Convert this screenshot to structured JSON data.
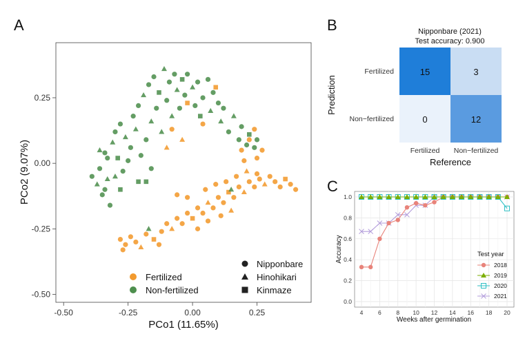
{
  "panels": {
    "a": "A",
    "b": "B",
    "c": "C"
  },
  "colors": {
    "fertilized": "#F29A2E",
    "non_fertilized": "#4E8F4E",
    "cm_high": "#1F7ED9",
    "cm_mid": "#5A9BE0",
    "cm_low": "#C9DDF3",
    "cm_zero": "#EAF2FB",
    "y2018": "#E8837A",
    "y2019": "#7CAE00",
    "y2020": "#2CBFC4",
    "y2021": "#B39DDB"
  },
  "chart_data": [
    {
      "type": "scatter",
      "panel": "A",
      "xlabel": "PCo1 (11.65%)",
      "ylabel": "PCo2 (9.07%)",
      "xlim": [
        -0.53,
        0.46
      ],
      "ylim": [
        -0.53,
        0.46
      ],
      "xticks": [
        -0.5,
        -0.25,
        0.0,
        0.25
      ],
      "xtick_labels": [
        "-0.50",
        "-0.25",
        "0.00",
        "0.25"
      ],
      "yticks": [
        -0.5,
        -0.25,
        0.0,
        0.25
      ],
      "ytick_labels": [
        "-0.50",
        "-0.25",
        "0.00",
        "0.25"
      ],
      "legend": {
        "groups": [
          "Fertilized",
          "Non-fertilized"
        ],
        "varieties": [
          {
            "name": "Nipponbare",
            "shape": "circle"
          },
          {
            "name": "Hinohikari",
            "shape": "triangle"
          },
          {
            "name": "Kinmaze",
            "shape": "square"
          }
        ]
      },
      "series": [
        {
          "name": "Fertilized",
          "points": [
            [
              -0.28,
              -0.29,
              "c"
            ],
            [
              -0.26,
              -0.31,
              "c"
            ],
            [
              -0.24,
              -0.28,
              "c"
            ],
            [
              -0.27,
              -0.33,
              "c"
            ],
            [
              -0.22,
              -0.3,
              "c"
            ],
            [
              -0.2,
              -0.32,
              "t"
            ],
            [
              -0.18,
              -0.27,
              "c"
            ],
            [
              -0.15,
              -0.29,
              "s"
            ],
            [
              -0.13,
              -0.31,
              "c"
            ],
            [
              -0.12,
              -0.26,
              "c"
            ],
            [
              -0.1,
              -0.23,
              "c"
            ],
            [
              -0.08,
              -0.25,
              "t"
            ],
            [
              -0.06,
              -0.21,
              "c"
            ],
            [
              -0.04,
              -0.23,
              "c"
            ],
            [
              -0.02,
              -0.19,
              "c"
            ],
            [
              0.0,
              -0.21,
              "s"
            ],
            [
              0.02,
              -0.17,
              "c"
            ],
            [
              0.04,
              -0.19,
              "c"
            ],
            [
              0.06,
              -0.15,
              "t"
            ],
            [
              0.08,
              -0.17,
              "c"
            ],
            [
              0.1,
              -0.13,
              "c"
            ],
            [
              0.12,
              -0.15,
              "c"
            ],
            [
              0.14,
              -0.11,
              "s"
            ],
            [
              0.16,
              -0.13,
              "c"
            ],
            [
              0.18,
              -0.09,
              "c"
            ],
            [
              0.2,
              -0.11,
              "t"
            ],
            [
              0.22,
              -0.07,
              "c"
            ],
            [
              0.24,
              -0.09,
              "c"
            ],
            [
              0.26,
              -0.06,
              "c"
            ],
            [
              0.28,
              -0.08,
              "t"
            ],
            [
              0.3,
              -0.05,
              "c"
            ],
            [
              0.32,
              -0.07,
              "c"
            ],
            [
              0.34,
              -0.09,
              "c"
            ],
            [
              0.36,
              -0.06,
              "s"
            ],
            [
              0.38,
              -0.08,
              "c"
            ],
            [
              0.4,
              -0.1,
              "c"
            ],
            [
              0.05,
              -0.1,
              "c"
            ],
            [
              0.09,
              -0.08,
              "c"
            ],
            [
              0.13,
              -0.07,
              "c"
            ],
            [
              0.17,
              -0.05,
              "c"
            ],
            [
              0.21,
              -0.03,
              "t"
            ],
            [
              0.25,
              -0.04,
              "c"
            ],
            [
              -0.02,
              -0.13,
              "c"
            ],
            [
              -0.06,
              -0.12,
              "c"
            ],
            [
              0.02,
              -0.25,
              "c"
            ],
            [
              0.06,
              -0.22,
              "c"
            ],
            [
              0.11,
              -0.2,
              "c"
            ],
            [
              0.15,
              -0.18,
              "t"
            ],
            [
              0.19,
              0.05,
              "c"
            ],
            [
              0.22,
              0.09,
              "c"
            ],
            [
              0.24,
              0.13,
              "c"
            ],
            [
              0.25,
              0.02,
              "c"
            ],
            [
              0.2,
              0.01,
              "c"
            ],
            [
              0.27,
              0.05,
              "c"
            ],
            [
              -0.08,
              0.13,
              "c"
            ],
            [
              -0.04,
              0.09,
              "t"
            ],
            [
              -0.02,
              0.23,
              "s"
            ],
            [
              0.04,
              0.15,
              "c"
            ],
            [
              0.09,
              0.29,
              "s"
            ],
            [
              -0.1,
              0.06,
              "t"
            ]
          ]
        },
        {
          "name": "Non-fertilized",
          "points": [
            [
              -0.39,
              -0.05,
              "c"
            ],
            [
              -0.37,
              -0.08,
              "t"
            ],
            [
              -0.36,
              -0.02,
              "c"
            ],
            [
              -0.35,
              -0.12,
              "c"
            ],
            [
              -0.33,
              -0.06,
              "t"
            ],
            [
              -0.32,
              -0.16,
              "c"
            ],
            [
              -0.34,
              0.04,
              "c"
            ],
            [
              -0.31,
              0.08,
              "t"
            ],
            [
              -0.3,
              0.12,
              "c"
            ],
            [
              -0.29,
              0.02,
              "s"
            ],
            [
              -0.28,
              0.15,
              "c"
            ],
            [
              -0.27,
              -0.03,
              "c"
            ],
            [
              -0.26,
              0.1,
              "t"
            ],
            [
              -0.24,
              0.06,
              "c"
            ],
            [
              -0.23,
              0.18,
              "c"
            ],
            [
              -0.22,
              0.13,
              "t"
            ],
            [
              -0.21,
              0.22,
              "c"
            ],
            [
              -0.2,
              0.03,
              "c"
            ],
            [
              -0.19,
              0.26,
              "t"
            ],
            [
              -0.18,
              0.09,
              "c"
            ],
            [
              -0.17,
              0.3,
              "c"
            ],
            [
              -0.16,
              0.16,
              "t"
            ],
            [
              -0.15,
              0.33,
              "c"
            ],
            [
              -0.14,
              0.21,
              "c"
            ],
            [
              -0.13,
              0.27,
              "s"
            ],
            [
              -0.12,
              0.12,
              "t"
            ],
            [
              -0.11,
              0.36,
              "t"
            ],
            [
              -0.1,
              0.24,
              "c"
            ],
            [
              -0.09,
              0.31,
              "c"
            ],
            [
              -0.08,
              0.18,
              "t"
            ],
            [
              -0.07,
              0.34,
              "c"
            ],
            [
              -0.06,
              0.28,
              "t"
            ],
            [
              -0.05,
              0.21,
              "c"
            ],
            [
              -0.04,
              0.32,
              "s"
            ],
            [
              -0.03,
              0.26,
              "c"
            ],
            [
              -0.02,
              0.34,
              "c"
            ],
            [
              0.0,
              0.29,
              "t"
            ],
            [
              0.01,
              0.22,
              "c"
            ],
            [
              0.02,
              0.31,
              "c"
            ],
            [
              0.03,
              0.18,
              "s"
            ],
            [
              0.04,
              0.25,
              "c"
            ],
            [
              0.06,
              0.32,
              "c"
            ],
            [
              0.07,
              0.2,
              "t"
            ],
            [
              0.08,
              0.27,
              "c"
            ],
            [
              0.1,
              0.23,
              "c"
            ],
            [
              0.11,
              0.16,
              "t"
            ],
            [
              0.12,
              0.21,
              "c"
            ],
            [
              0.14,
              0.12,
              "c"
            ],
            [
              0.16,
              0.18,
              "t"
            ],
            [
              0.18,
              0.09,
              "c"
            ],
            [
              0.19,
              0.14,
              "c"
            ],
            [
              0.21,
              0.07,
              "c"
            ],
            [
              0.22,
              0.11,
              "s"
            ],
            [
              0.24,
              0.06,
              "c"
            ],
            [
              0.25,
              0.09,
              "c"
            ],
            [
              -0.21,
              -0.07,
              "s"
            ],
            [
              -0.18,
              -0.07,
              "s"
            ],
            [
              -0.16,
              -0.02,
              "c"
            ],
            [
              0.15,
              -0.1,
              "t"
            ],
            [
              -0.17,
              -0.25,
              "t"
            ],
            [
              -0.36,
              0.05,
              "t"
            ],
            [
              -0.34,
              -0.1,
              "c"
            ],
            [
              -0.3,
              -0.05,
              "t"
            ],
            [
              -0.25,
              0.01,
              "c"
            ],
            [
              -0.33,
              0.02,
              "c"
            ],
            [
              -0.28,
              -0.1,
              "s"
            ]
          ]
        }
      ]
    },
    {
      "type": "heatmap",
      "panel": "B",
      "title": "Nipponbare (2021)",
      "subtitle": "Test accuracy: 0.900",
      "xlabel": "Reference",
      "ylabel": "Prediction",
      "x_categories": [
        "Fertilized",
        "Non−fertilized"
      ],
      "y_categories": [
        "Fertilized",
        "Non−fertilized"
      ],
      "values": [
        [
          15,
          3
        ],
        [
          0,
          12
        ]
      ]
    },
    {
      "type": "line",
      "panel": "C",
      "xlabel": "Weeks after germination",
      "ylabel": "Accuracy",
      "legend_title": "Test year",
      "xlim": [
        4,
        20
      ],
      "ylim": [
        0,
        1
      ],
      "xticks": [
        4,
        6,
        8,
        10,
        12,
        14,
        16,
        18,
        20
      ],
      "yticks": [
        0.0,
        0.2,
        0.4,
        0.6,
        0.8,
        1.0
      ],
      "ytick_labels": [
        "0.0",
        "0.2",
        "0.4",
        "0.6",
        "0.8",
        "1.0"
      ],
      "x": [
        4,
        5,
        6,
        7,
        8,
        9,
        10,
        11,
        12,
        13,
        14,
        15,
        16,
        17,
        18,
        19,
        20
      ],
      "series": [
        {
          "name": "2018",
          "marker": "circle",
          "values": [
            0.33,
            0.33,
            0.6,
            0.75,
            0.78,
            0.9,
            0.94,
            0.92,
            0.95,
            1.0,
            1.0,
            1.0,
            1.0,
            1.0,
            1.0,
            1.0,
            1.0
          ]
        },
        {
          "name": "2019",
          "marker": "triangle",
          "values": [
            1.0,
            1.0,
            1.0,
            1.0,
            1.0,
            1.0,
            1.0,
            1.0,
            1.0,
            1.0,
            1.0,
            1.0,
            1.0,
            1.0,
            1.0,
            1.0,
            1.0
          ]
        },
        {
          "name": "2020",
          "marker": "square",
          "values": [
            1.0,
            1.0,
            1.0,
            1.0,
            1.0,
            1.0,
            1.0,
            1.0,
            1.0,
            1.0,
            1.0,
            1.0,
            1.0,
            1.0,
            1.0,
            1.0,
            0.89
          ]
        },
        {
          "name": "2021",
          "marker": "x",
          "values": [
            0.67,
            0.67,
            0.75,
            0.75,
            0.83,
            0.83,
            0.92,
            0.92,
            1.0,
            1.0,
            1.0,
            1.0,
            1.0,
            1.0,
            1.0,
            1.0,
            1.0
          ]
        }
      ]
    }
  ]
}
